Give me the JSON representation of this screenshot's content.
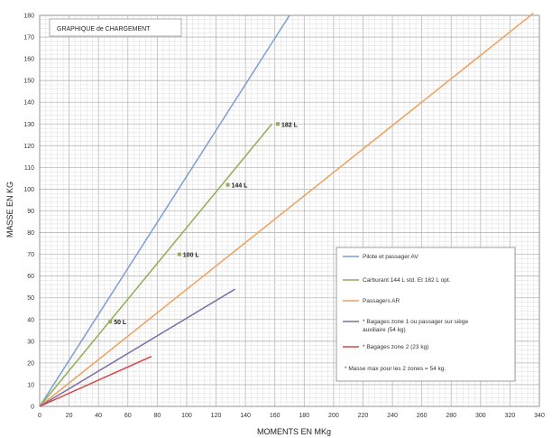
{
  "chart_data": {
    "type": "line",
    "title": "GRAPHIQUE de CHARGEMENT",
    "xlabel": "MOMENTS EN MKg",
    "ylabel": "MASSE EN KG",
    "xlim": [
      0,
      340
    ],
    "ylim": [
      0,
      180
    ],
    "x_ticks": [
      0,
      20,
      40,
      60,
      80,
      100,
      120,
      140,
      160,
      180,
      200,
      220,
      240,
      260,
      280,
      300,
      320,
      340
    ],
    "y_ticks": [
      0,
      10,
      20,
      30,
      40,
      50,
      60,
      70,
      80,
      90,
      100,
      110,
      120,
      130,
      140,
      150,
      160,
      170,
      180
    ],
    "grid": true,
    "legend_position": "lower-right",
    "series": [
      {
        "name": "Pilote et passager AV",
        "color": "#7b9fd1",
        "points": [
          [
            0,
            0
          ],
          [
            170,
            180
          ]
        ]
      },
      {
        "name": "Carburant 144 L std. Et 182 L opt.",
        "color": "#8fae55",
        "points": [
          [
            0,
            0
          ],
          [
            158,
            130
          ]
        ]
      },
      {
        "name": "Passagers AR",
        "color": "#f0a05c",
        "points": [
          [
            0,
            0
          ],
          [
            336,
            181
          ]
        ]
      },
      {
        "name": "* Bagages zone 1 ou passager sur siège auxiliaire (54 kg)",
        "color": "#7a6ea6",
        "points": [
          [
            0,
            0
          ],
          [
            133,
            54
          ]
        ]
      },
      {
        "name": "* Bagages zone 2 (23 kg)",
        "color": "#d84343",
        "points": [
          [
            0,
            0
          ],
          [
            76,
            23
          ]
        ]
      }
    ],
    "legend_note": "* Masse max pour les 2 zones = 54 kg.",
    "annotations": [
      {
        "text": "50 L",
        "x": 48,
        "y": 39
      },
      {
        "text": "100 L",
        "x": 95,
        "y": 70
      },
      {
        "text": "144 L",
        "x": 128,
        "y": 102
      },
      {
        "text": "182 L",
        "x": 162,
        "y": 130
      }
    ]
  }
}
